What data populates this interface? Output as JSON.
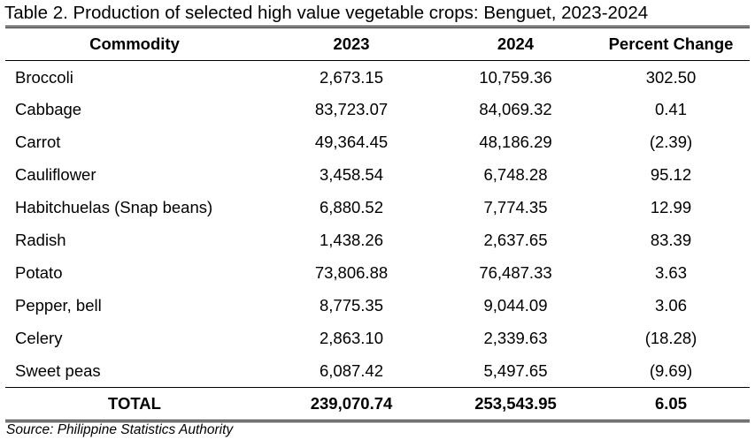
{
  "title": "Table 2. Production of selected high value vegetable crops: Benguet, 2023-2024",
  "headers": [
    "Commodity",
    "2023",
    "2024",
    "Percent Change"
  ],
  "rows": [
    [
      "Broccoli",
      "2,673.15",
      "10,759.36",
      "302.50"
    ],
    [
      "Cabbage",
      "83,723.07",
      "84,069.32",
      "0.41"
    ],
    [
      "Carrot",
      "49,364.45",
      "48,186.29",
      "(2.39)"
    ],
    [
      "Cauliflower",
      "3,458.54",
      "6,748.28",
      "95.12"
    ],
    [
      "Habitchuelas (Snap beans)",
      "6,880.52",
      "7,774.35",
      "12.99"
    ],
    [
      "Radish",
      "1,438.26",
      "2,637.65",
      "83.39"
    ],
    [
      "Potato",
      "73,806.88",
      "76,487.33",
      "3.63"
    ],
    [
      "Pepper, bell",
      "8,775.35",
      "9,044.09",
      "3.06"
    ],
    [
      "Celery",
      "2,863.10",
      "2,339.63",
      "(18.28)"
    ],
    [
      "Sweet peas",
      "6,087.42",
      "5,497.65",
      "(9.69)"
    ]
  ],
  "total": [
    "TOTAL",
    "239,070.74",
    "253,543.95",
    "6.05"
  ],
  "source": "Source: Philippine Statistics Authority"
}
